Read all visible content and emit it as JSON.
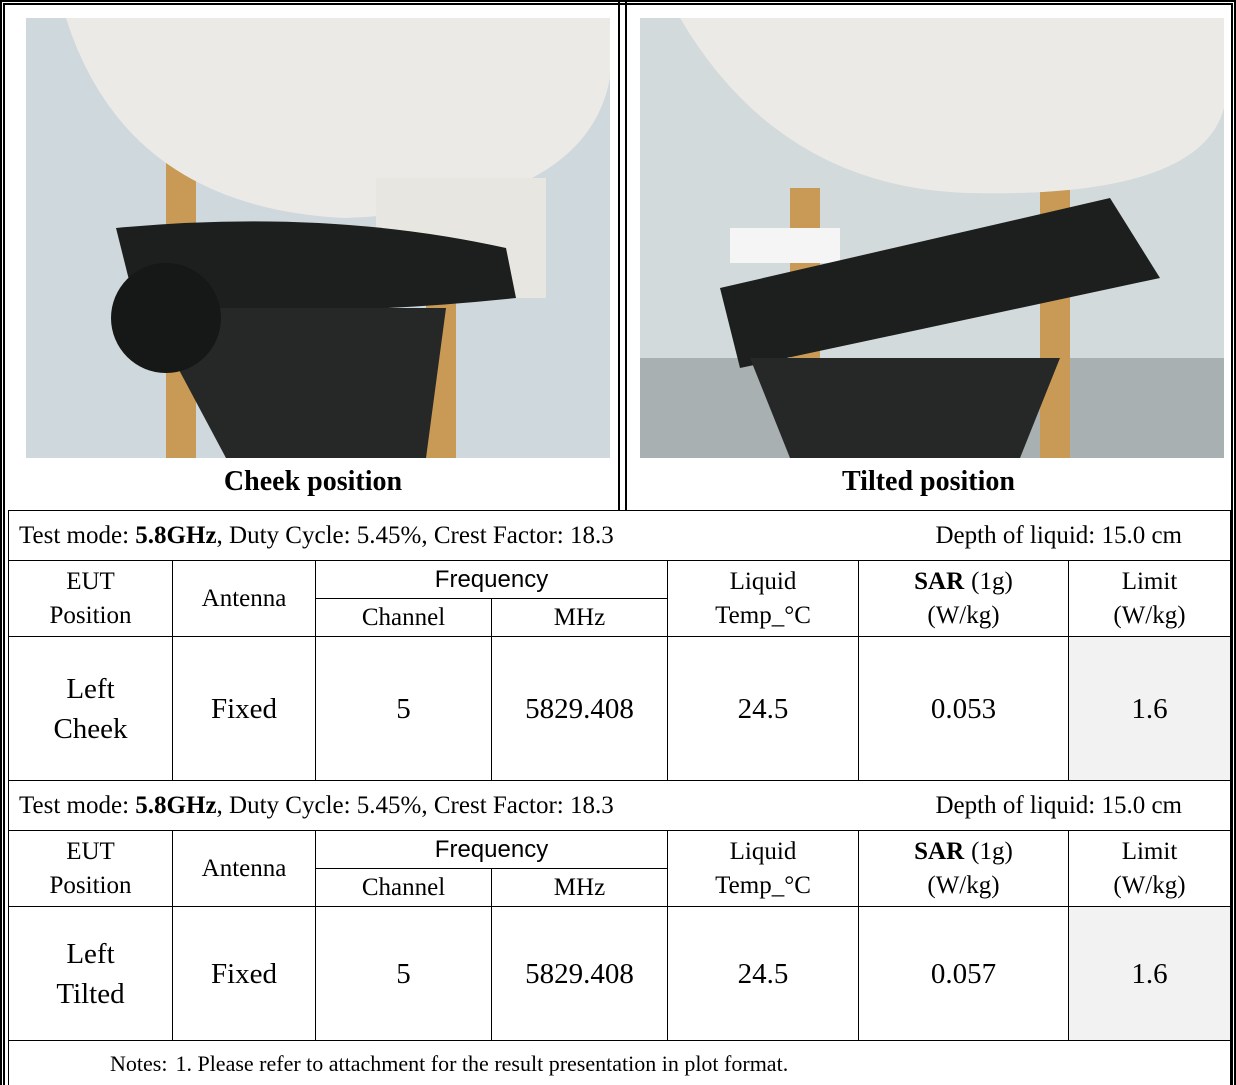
{
  "photos": [
    {
      "caption": "Cheek position"
    },
    {
      "caption": "Tilted position"
    }
  ],
  "tests": [
    {
      "mode_label": "Test mode: ",
      "mode_value": "5.8GHz",
      "mode_rest": ", Duty Cycle: 5.45%, Crest Factor: 18.3",
      "depth": "Depth of liquid: 15.0 cm",
      "header": {
        "eut": [
          "EUT",
          "Position"
        ],
        "antenna": "Antenna",
        "frequency": "Frequency",
        "channel": "Channel",
        "mhz": "MHz",
        "liquid": [
          "Liquid",
          "Temp_°C"
        ],
        "sar": "SAR",
        "sar_unit": "(1g)",
        "sar_wkg": "(W/kg)",
        "limit": [
          "Limit",
          "(W/kg)"
        ]
      },
      "row": {
        "position": [
          "Left",
          "Cheek"
        ],
        "antenna": "Fixed",
        "channel": 5,
        "mhz": 5829.408,
        "temp": 24.5,
        "sar": 0.053,
        "limit": 1.6
      }
    },
    {
      "mode_label": "Test mode: ",
      "mode_value": "5.8GHz",
      "mode_rest": ", Duty Cycle: 5.45%, Crest Factor: 18.3",
      "depth": "Depth of liquid: 15.0 cm",
      "header": {
        "eut": [
          "EUT",
          "Position"
        ],
        "antenna": "Antenna",
        "frequency": "Frequency",
        "channel": "Channel",
        "mhz": "MHz",
        "liquid": [
          "Liquid",
          "Temp_°C"
        ],
        "sar": "SAR",
        "sar_unit": "(1g)",
        "sar_wkg": "(W/kg)",
        "limit": [
          "Limit",
          "(W/kg)"
        ]
      },
      "row": {
        "position": [
          "Left",
          "Tilted"
        ],
        "antenna": "Fixed",
        "channel": 5,
        "mhz": 5829.408,
        "temp": 24.5,
        "sar": 0.057,
        "limit": 1.6
      }
    }
  ],
  "notes": {
    "label": "Notes:",
    "items": [
      "1. Please refer to attachment for the result presentation in plot format."
    ]
  }
}
